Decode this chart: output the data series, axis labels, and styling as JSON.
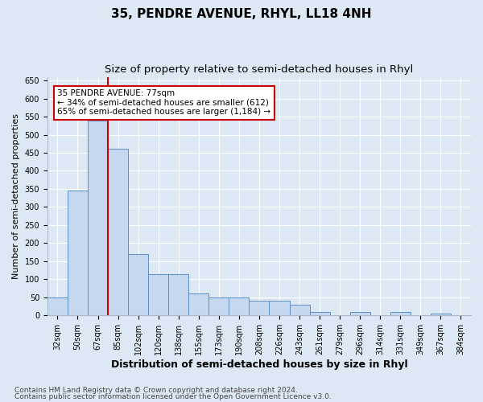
{
  "title": "35, PENDRE AVENUE, RHYL, LL18 4NH",
  "subtitle": "Size of property relative to semi-detached houses in Rhyl",
  "xlabel": "Distribution of semi-detached houses by size in Rhyl",
  "ylabel": "Number of semi-detached properties",
  "categories": [
    "32sqm",
    "50sqm",
    "67sqm",
    "85sqm",
    "102sqm",
    "120sqm",
    "138sqm",
    "155sqm",
    "173sqm",
    "190sqm",
    "208sqm",
    "226sqm",
    "243sqm",
    "261sqm",
    "279sqm",
    "296sqm",
    "314sqm",
    "331sqm",
    "349sqm",
    "367sqm",
    "384sqm"
  ],
  "values": [
    50,
    345,
    540,
    460,
    170,
    115,
    115,
    60,
    50,
    50,
    40,
    40,
    30,
    10,
    0,
    10,
    0,
    10,
    0,
    5,
    0
  ],
  "bar_color": "#c5d8f0",
  "bar_edge_color": "#5b8fc9",
  "red_line_index": 2,
  "annotation_title": "35 PENDRE AVENUE: 77sqm",
  "annotation_line1": "← 34% of semi-detached houses are smaller (612)",
  "annotation_line2": "65% of semi-detached houses are larger (1,184) →",
  "ylim": [
    0,
    660
  ],
  "yticks": [
    0,
    50,
    100,
    150,
    200,
    250,
    300,
    350,
    400,
    450,
    500,
    550,
    600,
    650
  ],
  "footer1": "Contains HM Land Registry data © Crown copyright and database right 2024.",
  "footer2": "Contains public sector information licensed under the Open Government Licence v3.0.",
  "bg_color": "#dce9f5",
  "title_fontsize": 11,
  "subtitle_fontsize": 9.5,
  "ylabel_fontsize": 8,
  "xlabel_fontsize": 9,
  "tick_fontsize": 7,
  "annot_title_fontsize": 8,
  "annot_body_fontsize": 7.5,
  "footer_fontsize": 6.5
}
